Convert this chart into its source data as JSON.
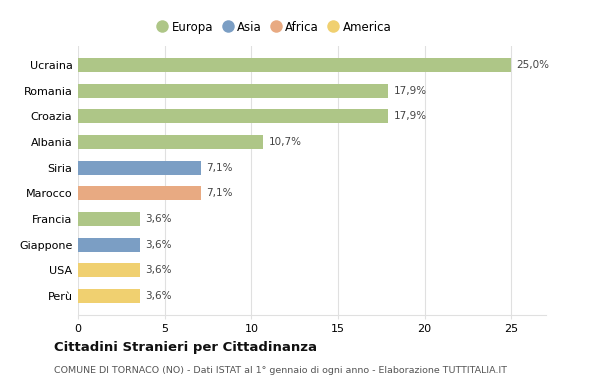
{
  "countries": [
    "Perù",
    "USA",
    "Giappone",
    "Francia",
    "Marocco",
    "Siria",
    "Albania",
    "Croazia",
    "Romania",
    "Ucraina"
  ],
  "values": [
    3.6,
    3.6,
    3.6,
    3.6,
    7.1,
    7.1,
    10.7,
    17.9,
    17.9,
    25.0
  ],
  "labels": [
    "3,6%",
    "3,6%",
    "3,6%",
    "3,6%",
    "7,1%",
    "7,1%",
    "10,7%",
    "17,9%",
    "17,9%",
    "25,0%"
  ],
  "continents": [
    "America",
    "America",
    "Asia",
    "Europa",
    "Africa",
    "Asia",
    "Europa",
    "Europa",
    "Europa",
    "Europa"
  ],
  "colors": {
    "Europa": "#aec687",
    "Asia": "#7b9ec4",
    "Africa": "#e8aa82",
    "America": "#f0d070"
  },
  "legend_order": [
    "Europa",
    "Asia",
    "Africa",
    "America"
  ],
  "xlim": [
    0,
    27
  ],
  "xticks": [
    0,
    5,
    10,
    15,
    20,
    25
  ],
  "title": "Cittadini Stranieri per Cittadinanza",
  "subtitle": "COMUNE DI TORNACO (NO) - Dati ISTAT al 1° gennaio di ogni anno - Elaborazione TUTTITALIA.IT",
  "background_color": "#ffffff",
  "grid_color": "#e0e0e0"
}
